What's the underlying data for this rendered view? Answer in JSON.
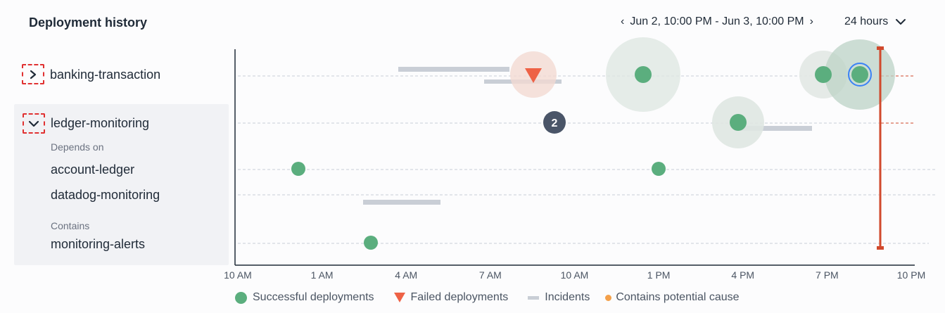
{
  "header": {
    "title": "Deployment history",
    "range_label": "Jun 2, 10:00 PM - Jun 3, 10:00 PM",
    "prev_icon": "chevron-left-icon",
    "next_icon": "chevron-right-icon",
    "window_label": "24 hours",
    "window_icon": "chevron-down-icon"
  },
  "sidebar": {
    "services": [
      {
        "name": "banking-transaction",
        "expanded": false
      },
      {
        "name": "ledger-monitoring",
        "expanded": true
      }
    ],
    "depends_on_label": "Depends on",
    "depends_on": [
      "account-ledger",
      "datadog-monitoring"
    ],
    "contains_label": "Contains",
    "contains": [
      "monitoring-alerts"
    ]
  },
  "timeline": {
    "x_ticks": [
      "10 AM",
      "1 AM",
      "4 AM",
      "7 AM",
      "10 AM",
      "1 PM",
      "4 PM",
      "7 PM",
      "10 PM"
    ],
    "cluster_badge": "2",
    "colors": {
      "success": "#5bae7e",
      "failed": "#ee6246",
      "incident": "#c9ced6",
      "now_line": "#d1492c",
      "selected_ring": "#3b82f6",
      "gridline": "#c9ced6"
    }
  },
  "legend": {
    "success": "Successful deployments",
    "failed": "Failed deployments",
    "incidents": "Incidents",
    "potential_cause": "Contains potential cause"
  }
}
